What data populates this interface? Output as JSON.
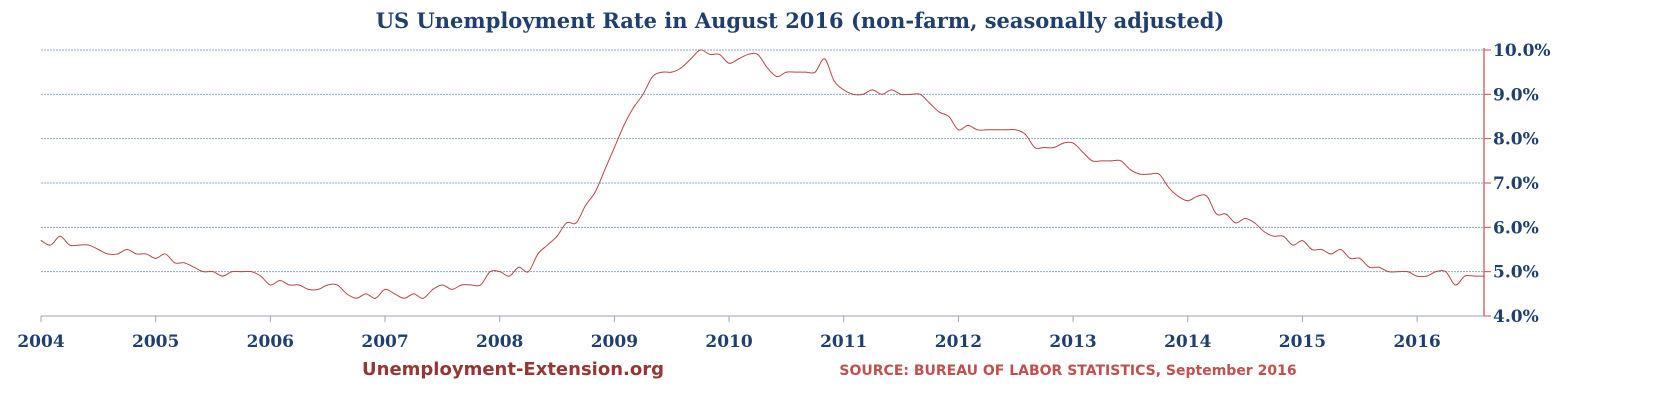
{
  "chart_data": {
    "type": "line",
    "title": "US Unemployment Rate in August 2016 (non-farm, seasonally adjusted)",
    "xlabel": "",
    "ylabel": "",
    "x_ticks": [
      "2004",
      "2005",
      "2006",
      "2007",
      "2008",
      "2009",
      "2010",
      "2011",
      "2012",
      "2013",
      "2014",
      "2015",
      "2016"
    ],
    "y_ticks": [
      "4.0%",
      "5.0%",
      "6.0%",
      "7.0%",
      "8.0%",
      "9.0%",
      "10.0%"
    ],
    "xlim": [
      "2004-01",
      "2016-08"
    ],
    "ylim": [
      4.0,
      10.0
    ],
    "grid": true,
    "y_axis_side": "right",
    "series": [
      {
        "color": "#b24a47",
        "x": [
          "2004-01",
          "2004-02",
          "2004-03",
          "2004-04",
          "2004-05",
          "2004-06",
          "2004-07",
          "2004-08",
          "2004-09",
          "2004-10",
          "2004-11",
          "2004-12",
          "2005-01",
          "2005-02",
          "2005-03",
          "2005-04",
          "2005-05",
          "2005-06",
          "2005-07",
          "2005-08",
          "2005-09",
          "2005-10",
          "2005-11",
          "2005-12",
          "2006-01",
          "2006-02",
          "2006-03",
          "2006-04",
          "2006-05",
          "2006-06",
          "2006-07",
          "2006-08",
          "2006-09",
          "2006-10",
          "2006-11",
          "2006-12",
          "2007-01",
          "2007-02",
          "2007-03",
          "2007-04",
          "2007-05",
          "2007-06",
          "2007-07",
          "2007-08",
          "2007-09",
          "2007-10",
          "2007-11",
          "2007-12",
          "2008-01",
          "2008-02",
          "2008-03",
          "2008-04",
          "2008-05",
          "2008-06",
          "2008-07",
          "2008-08",
          "2008-09",
          "2008-10",
          "2008-11",
          "2008-12",
          "2009-01",
          "2009-02",
          "2009-03",
          "2009-04",
          "2009-05",
          "2009-06",
          "2009-07",
          "2009-08",
          "2009-09",
          "2009-10",
          "2009-11",
          "2009-12",
          "2010-01",
          "2010-02",
          "2010-03",
          "2010-04",
          "2010-05",
          "2010-06",
          "2010-07",
          "2010-08",
          "2010-09",
          "2010-10",
          "2010-11",
          "2010-12",
          "2011-01",
          "2011-02",
          "2011-03",
          "2011-04",
          "2011-05",
          "2011-06",
          "2011-07",
          "2011-08",
          "2011-09",
          "2011-10",
          "2011-11",
          "2011-12",
          "2012-01",
          "2012-02",
          "2012-03",
          "2012-04",
          "2012-05",
          "2012-06",
          "2012-07",
          "2012-08",
          "2012-09",
          "2012-10",
          "2012-11",
          "2012-12",
          "2013-01",
          "2013-02",
          "2013-03",
          "2013-04",
          "2013-05",
          "2013-06",
          "2013-07",
          "2013-08",
          "2013-09",
          "2013-10",
          "2013-11",
          "2013-12",
          "2014-01",
          "2014-02",
          "2014-03",
          "2014-04",
          "2014-05",
          "2014-06",
          "2014-07",
          "2014-08",
          "2014-09",
          "2014-10",
          "2014-11",
          "2014-12",
          "2015-01",
          "2015-02",
          "2015-03",
          "2015-04",
          "2015-05",
          "2015-06",
          "2015-07",
          "2015-08",
          "2015-09",
          "2015-10",
          "2015-11",
          "2015-12",
          "2016-01",
          "2016-02",
          "2016-03",
          "2016-04",
          "2016-05",
          "2016-06",
          "2016-07",
          "2016-08"
        ],
        "values": [
          5.7,
          5.6,
          5.8,
          5.6,
          5.6,
          5.6,
          5.5,
          5.4,
          5.4,
          5.5,
          5.4,
          5.4,
          5.3,
          5.4,
          5.2,
          5.2,
          5.1,
          5.0,
          5.0,
          4.9,
          5.0,
          5.0,
          5.0,
          4.9,
          4.7,
          4.8,
          4.7,
          4.7,
          4.6,
          4.6,
          4.7,
          4.7,
          4.5,
          4.4,
          4.5,
          4.4,
          4.6,
          4.5,
          4.4,
          4.5,
          4.4,
          4.6,
          4.7,
          4.6,
          4.7,
          4.7,
          4.7,
          5.0,
          5.0,
          4.9,
          5.1,
          5.0,
          5.4,
          5.6,
          5.8,
          6.1,
          6.1,
          6.5,
          6.8,
          7.3,
          7.8,
          8.3,
          8.7,
          9.0,
          9.4,
          9.5,
          9.5,
          9.6,
          9.8,
          10.0,
          9.9,
          9.9,
          9.7,
          9.8,
          9.9,
          9.9,
          9.6,
          9.4,
          9.5,
          9.5,
          9.5,
          9.5,
          9.8,
          9.3,
          9.1,
          9.0,
          9.0,
          9.1,
          9.0,
          9.1,
          9.0,
          9.0,
          9.0,
          8.8,
          8.6,
          8.5,
          8.2,
          8.3,
          8.2,
          8.2,
          8.2,
          8.2,
          8.2,
          8.1,
          7.8,
          7.8,
          7.8,
          7.9,
          7.9,
          7.7,
          7.5,
          7.5,
          7.5,
          7.5,
          7.3,
          7.2,
          7.2,
          7.2,
          6.9,
          6.7,
          6.6,
          6.7,
          6.7,
          6.3,
          6.3,
          6.1,
          6.2,
          6.1,
          5.9,
          5.8,
          5.8,
          5.6,
          5.7,
          5.5,
          5.5,
          5.4,
          5.5,
          5.3,
          5.3,
          5.1,
          5.1,
          5.0,
          5.0,
          5.0,
          4.9,
          4.9,
          5.0,
          5.0,
          4.7,
          4.9,
          4.9,
          4.9
        ]
      }
    ]
  },
  "footer": {
    "site": "Unemployment-Extension.org",
    "source": "SOURCE: BUREAU OF LABOR STATISTICS, September 2016"
  },
  "colors": {
    "title": "#1f3f6e",
    "axis_labels": "#1f3f6e",
    "line": "#b24a47",
    "right_axis": "#c0504d",
    "grid": "#8ea9cf",
    "site": "#953735",
    "source": "#c0504d"
  }
}
